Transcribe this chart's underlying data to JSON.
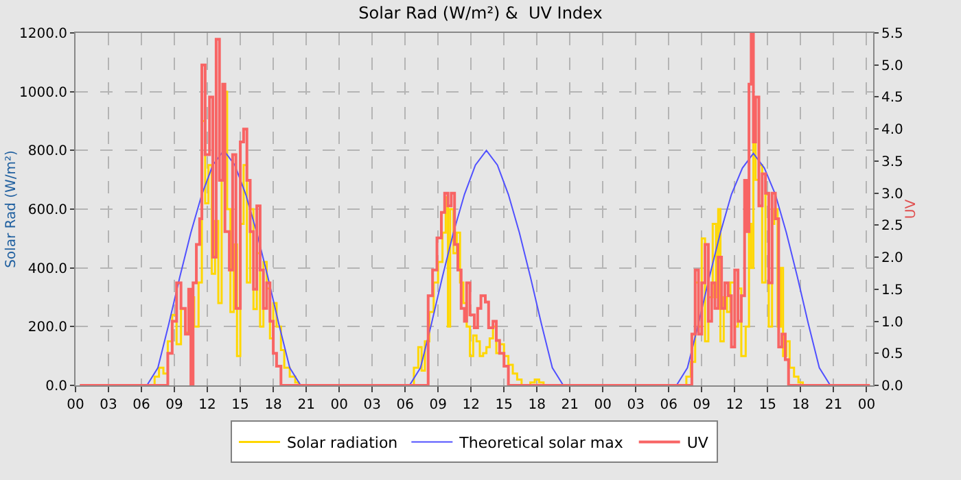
{
  "chart_data": {
    "type": "step",
    "title": "Solar Rad (W/m²) &  UV Index",
    "ylabel": "Solar Rad (W/m²)",
    "y2label": "UV",
    "xlim": [
      0,
      72.6
    ],
    "xticks": [
      {
        "value": 0,
        "label": "00"
      },
      {
        "value": 3,
        "label": "03"
      },
      {
        "value": 6,
        "label": "06"
      },
      {
        "value": 9,
        "label": "09"
      },
      {
        "value": 12,
        "label": "12"
      },
      {
        "value": 15,
        "label": "15"
      },
      {
        "value": 18,
        "label": "18"
      },
      {
        "value": 21,
        "label": "21"
      },
      {
        "value": 24,
        "label": "00"
      },
      {
        "value": 27,
        "label": "03"
      },
      {
        "value": 30,
        "label": "06"
      },
      {
        "value": 33,
        "label": "09"
      },
      {
        "value": 36,
        "label": "12"
      },
      {
        "value": 39,
        "label": "15"
      },
      {
        "value": 42,
        "label": "18"
      },
      {
        "value": 45,
        "label": "21"
      },
      {
        "value": 48,
        "label": "00"
      },
      {
        "value": 51,
        "label": "03"
      },
      {
        "value": 54,
        "label": "06"
      },
      {
        "value": 57,
        "label": "09"
      },
      {
        "value": 60,
        "label": "12"
      },
      {
        "value": 63,
        "label": "15"
      },
      {
        "value": 66,
        "label": "18"
      },
      {
        "value": 69,
        "label": "21"
      },
      {
        "value": 72,
        "label": "00"
      }
    ],
    "ylim": [
      0,
      1200
    ],
    "yticks": [
      {
        "value": 0,
        "label": "0.0"
      },
      {
        "value": 200,
        "label": "200.0"
      },
      {
        "value": 400,
        "label": "400.0"
      },
      {
        "value": 600,
        "label": "600.0"
      },
      {
        "value": 800,
        "label": "800.0"
      },
      {
        "value": 1000,
        "label": "1000.0"
      },
      {
        "value": 1200,
        "label": "1200.0"
      }
    ],
    "y2lim": [
      0,
      5.5
    ],
    "y2ticks": [
      {
        "value": 0,
        "label": "0.0"
      },
      {
        "value": 0.5,
        "label": "0.5"
      },
      {
        "value": 1,
        "label": "1.0"
      },
      {
        "value": 1.5,
        "label": "1.5"
      },
      {
        "value": 2,
        "label": "2.0"
      },
      {
        "value": 2.5,
        "label": "2.5"
      },
      {
        "value": 3,
        "label": "3.0"
      },
      {
        "value": 3.5,
        "label": "3.5"
      },
      {
        "value": 4,
        "label": "4.0"
      },
      {
        "value": 4.5,
        "label": "4.5"
      },
      {
        "value": 5,
        "label": "5.0"
      },
      {
        "value": 5.5,
        "label": "5.5"
      }
    ],
    "grid": true,
    "legend": "bottom",
    "line_style": "solid",
    "series": [
      {
        "name": "Solar radiation",
        "color": "#ffd700",
        "x": [
          0.4,
          6.8,
          7.2,
          7.6,
          8,
          8.4,
          8.8,
          9.2,
          9.6,
          10,
          10.4,
          10.8,
          11.2,
          11.5,
          11.8,
          12.1,
          12.4,
          12.7,
          13,
          13.3,
          13.5,
          13.8,
          14.1,
          14.4,
          14.7,
          15,
          15.3,
          15.6,
          15.9,
          16.2,
          16.5,
          16.8,
          17.1,
          17.4,
          17.7,
          18,
          18.3,
          18.7,
          19,
          19.5,
          20,
          20.3,
          30.4,
          30.8,
          31.2,
          31.5,
          31.8,
          32.2,
          32.6,
          33,
          33.4,
          33.7,
          33.9,
          34.1,
          34.4,
          34.7,
          35,
          35.3,
          35.6,
          35.9,
          36.2,
          36.5,
          36.8,
          37.1,
          37.4,
          37.7,
          38,
          38.3,
          38.6,
          39,
          39.4,
          39.8,
          40.2,
          40.6,
          41.4,
          41.8,
          42.2,
          42.6,
          55.3,
          55.6,
          56,
          56.4,
          56.7,
          57,
          57.3,
          57.6,
          58,
          58.3,
          58.5,
          58.7,
          59,
          59.3,
          59.6,
          60,
          60.3,
          60.6,
          61,
          61.3,
          61.5,
          61.7,
          61.9,
          62.2,
          62.5,
          62.8,
          63.1,
          63.4,
          63.6,
          63.9,
          64.2,
          64.4,
          64.7,
          65,
          65.4,
          65.8,
          66.2,
          72.3
        ],
        "values": [
          0,
          0,
          30,
          60,
          40,
          150,
          240,
          140,
          260,
          180,
          300,
          200,
          350,
          900,
          620,
          750,
          380,
          560,
          280,
          700,
          1000,
          600,
          250,
          480,
          100,
          550,
          750,
          350,
          600,
          260,
          450,
          200,
          420,
          330,
          160,
          280,
          200,
          120,
          60,
          30,
          10,
          0,
          0,
          60,
          130,
          50,
          150,
          250,
          350,
          420,
          520,
          640,
          200,
          600,
          450,
          520,
          350,
          280,
          200,
          100,
          170,
          150,
          100,
          110,
          130,
          160,
          200,
          110,
          140,
          100,
          70,
          40,
          20,
          0,
          10,
          20,
          10,
          0,
          0,
          30,
          80,
          350,
          200,
          500,
          150,
          300,
          550,
          300,
          600,
          150,
          300,
          250,
          350,
          200,
          330,
          100,
          200,
          550,
          400,
          900,
          700,
          750,
          350,
          650,
          200,
          550,
          600,
          200,
          400,
          100,
          150,
          60,
          30,
          10,
          0,
          0
        ]
      },
      {
        "name": "Theoretical solar max",
        "type": "line",
        "color": "#5050ff",
        "x": [
          0.4,
          6.5,
          7.5,
          8.5,
          9.5,
          10.5,
          11.5,
          12.5,
          13.5,
          14.5,
          15.5,
          16.5,
          17.5,
          18.5,
          19.5,
          20.5,
          30.4,
          31.4,
          32.4,
          33.4,
          34.4,
          35.4,
          36.4,
          37.4,
          38.4,
          39.4,
          40.4,
          41.4,
          42.4,
          43.4,
          44.4,
          54.7,
          55.7,
          56.7,
          57.7,
          58.7,
          59.7,
          60.7,
          61.7,
          62.7,
          63.7,
          64.7,
          65.7,
          66.7,
          67.7,
          68.7,
          72.3
        ],
        "values": [
          0,
          0,
          60,
          210,
          370,
          520,
          650,
          750,
          800,
          750,
          650,
          520,
          370,
          210,
          60,
          0,
          0,
          60,
          210,
          370,
          520,
          650,
          750,
          800,
          750,
          650,
          520,
          370,
          210,
          60,
          0,
          0,
          60,
          210,
          370,
          520,
          650,
          740,
          790,
          740,
          650,
          520,
          370,
          210,
          60,
          0,
          0
        ]
      },
      {
        "name": "UV",
        "type": "step",
        "axis": "y2",
        "color": "#f86464",
        "x": [
          0.4,
          8.2,
          8.4,
          8.8,
          9.2,
          9.6,
          10,
          10.3,
          10.5,
          10.7,
          11,
          11.3,
          11.5,
          11.8,
          12.2,
          12.5,
          12.8,
          13.1,
          13.4,
          13.6,
          14,
          14.3,
          14.6,
          15,
          15.3,
          15.6,
          15.9,
          16.2,
          16.5,
          16.8,
          17.1,
          17.4,
          17.7,
          18,
          18.3,
          18.7,
          32,
          32.1,
          32.5,
          32.9,
          33.3,
          33.6,
          33.9,
          34.2,
          34.5,
          34.8,
          35.1,
          35.4,
          35.6,
          35.9,
          36.3,
          36.6,
          36.9,
          37.3,
          37.6,
          38,
          38.3,
          38.6,
          39,
          39.4,
          56,
          56.1,
          56.4,
          56.7,
          57,
          57.3,
          57.6,
          57.9,
          58.2,
          58.5,
          58.8,
          59.1,
          59.4,
          59.7,
          60,
          60.3,
          60.6,
          60.9,
          61.1,
          61.3,
          61.5,
          61.7,
          61.9,
          62.2,
          62.5,
          62.8,
          63.1,
          63.4,
          63.7,
          64,
          64.3,
          64.6,
          64.9,
          72.3
        ],
        "values": [
          0,
          0,
          0.5,
          1.0,
          1.6,
          1.2,
          0.8,
          1.5,
          0,
          1.6,
          2.2,
          2.6,
          5.0,
          3.6,
          4.5,
          2.0,
          5.4,
          3.2,
          4.7,
          2.4,
          1.8,
          3.6,
          1.2,
          3.8,
          4.0,
          3.2,
          2.4,
          1.5,
          2.8,
          1.8,
          1.2,
          1.6,
          1.0,
          0.5,
          0.3,
          0,
          0,
          1.4,
          1.8,
          2.3,
          2.7,
          3.0,
          2.8,
          3.0,
          2.2,
          1.8,
          1.2,
          1.0,
          1.6,
          1.1,
          0.9,
          1.2,
          1.4,
          1.3,
          0.9,
          1.0,
          0.7,
          0.5,
          0.3,
          0,
          0,
          0.8,
          1.8,
          0.8,
          1.6,
          2.2,
          1.0,
          1.6,
          1.2,
          2.0,
          1.2,
          1.6,
          1.4,
          0.6,
          1.8,
          1.0,
          1.4,
          3.2,
          2.4,
          4.7,
          5.5,
          3.8,
          4.5,
          2.8,
          3.3,
          3.0,
          1.6,
          3.0,
          2.6,
          0.6,
          0.8,
          0.4,
          0,
          0
        ]
      }
    ]
  }
}
